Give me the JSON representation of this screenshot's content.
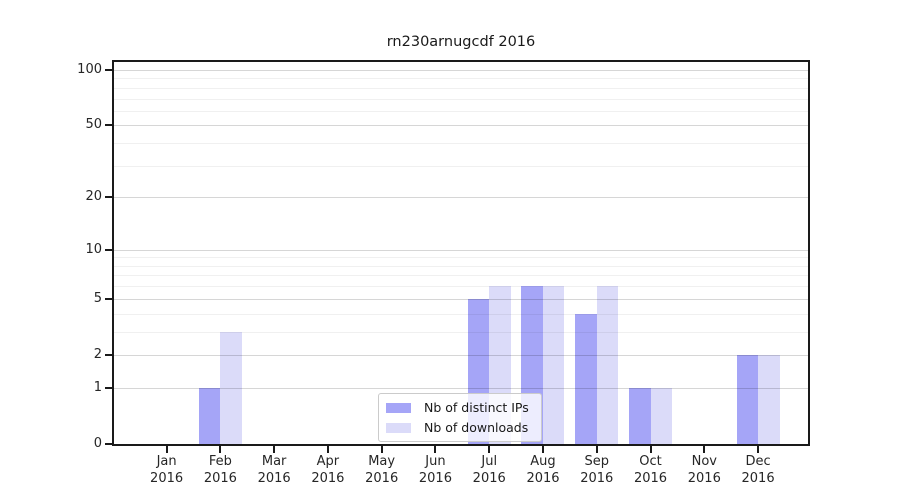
{
  "chart_data": {
    "type": "bar",
    "title": "rn230arnugcdf 2016",
    "categories": [
      "Jan",
      "Feb",
      "Mar",
      "Apr",
      "May",
      "Jun",
      "Jul",
      "Aug",
      "Sep",
      "Oct",
      "Nov",
      "Dec"
    ],
    "category_year": "2016",
    "series": [
      {
        "name": "Nb of distinct IPs",
        "color": "#a5a5f7",
        "values": [
          0,
          1,
          0,
          0,
          0,
          0,
          5,
          6,
          4,
          1,
          0,
          2
        ]
      },
      {
        "name": "Nb of downloads",
        "color": "#dbdbf9",
        "values": [
          0,
          3,
          0,
          0,
          0,
          0,
          6,
          6,
          6,
          1,
          0,
          2
        ]
      }
    ],
    "yscale": "log1p",
    "ylim": [
      0,
      100
    ],
    "yticks_major": [
      0,
      1,
      2,
      5,
      10,
      20,
      50,
      100
    ],
    "yticks_minor": [
      3,
      4,
      6,
      7,
      8,
      9,
      30,
      40,
      60,
      70,
      80,
      90
    ],
    "xlabel": "",
    "ylabel": "",
    "grid": true,
    "legend_position": "lower center",
    "legend_entries": [
      "Nb of distinct IPs",
      "Nb of downloads"
    ]
  },
  "style_colors": {
    "spine": "#1a1a1a",
    "tick_text": "#262626",
    "major_grid": "rgba(0,0,0,0.16)",
    "minor_grid": "rgba(0,0,0,0.06)",
    "legend_border": "#cbcbcb"
  }
}
